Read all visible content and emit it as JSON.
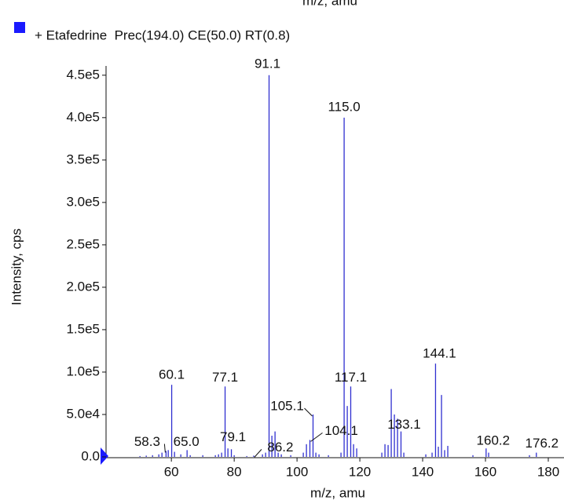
{
  "chart_data": {
    "type": "stick",
    "header_fragment": "m/z, amu",
    "x_label": "m/z, amu",
    "y_label": "Intensity, cps",
    "xlim": [
      39.2,
      185
    ],
    "ylim": [
      0,
      460000
    ],
    "xticks": [
      60,
      80,
      100,
      120,
      140,
      160,
      180
    ],
    "yticks": [
      {
        "value": 0,
        "label": "0.0"
      },
      {
        "value": 50000,
        "label": "5.0e4"
      },
      {
        "value": 100000,
        "label": "1.0e5"
      },
      {
        "value": 150000,
        "label": "1.5e5"
      },
      {
        "value": 200000,
        "label": "2.0e5"
      },
      {
        "value": 250000,
        "label": "2.5e5"
      },
      {
        "value": 300000,
        "label": "3.0e5"
      },
      {
        "value": 350000,
        "label": "3.5e5"
      },
      {
        "value": 400000,
        "label": "4.0e5"
      },
      {
        "value": 450000,
        "label": "4.5e5"
      }
    ],
    "series": [
      {
        "name": "+ Etafedrine  Prec(194.0) CE(50.0) RT(0.8)",
        "color": "#2f2fd0",
        "legend_color": "#1a1aff",
        "x": [
          50,
          52,
          54,
          56,
          57,
          58.3,
          59,
          60.1,
          61,
          63,
          65.0,
          66,
          70,
          74,
          75,
          76,
          77.1,
          78,
          79.1,
          80,
          84,
          86.2,
          89,
          90,
          91.1,
          92,
          93,
          94,
          95,
          98,
          102,
          103,
          104.1,
          105.1,
          106,
          107,
          110,
          114,
          115.0,
          116,
          117.1,
          118,
          119,
          127,
          128,
          129,
          130,
          131,
          132,
          133.1,
          134,
          141,
          143,
          144.1,
          145,
          146,
          147,
          148,
          156,
          160.2,
          161,
          174,
          176.2
        ],
        "values": [
          1000,
          1500,
          2000,
          3000,
          5000,
          7000,
          8000,
          85000,
          6000,
          3000,
          8000,
          2000,
          2000,
          2000,
          3000,
          5000,
          83000,
          10000,
          9000,
          2000,
          1000,
          1500,
          3000,
          5000,
          450000,
          25000,
          30000,
          5000,
          3000,
          2000,
          5000,
          15000,
          20000,
          50000,
          5000,
          3000,
          2000,
          5000,
          400000,
          60000,
          83000,
          15000,
          10000,
          5000,
          15000,
          14000,
          80000,
          50000,
          45000,
          30000,
          5000,
          3000,
          5000,
          110000,
          12000,
          73000,
          8000,
          13000,
          2000,
          10000,
          5000,
          2000,
          5000
        ]
      }
    ],
    "annotations": [
      {
        "x": 58.3,
        "text": "58.3"
      },
      {
        "x": 60.1,
        "text": "60.1"
      },
      {
        "x": 65.0,
        "text": "65.0"
      },
      {
        "x": 77.1,
        "text": "77.1"
      },
      {
        "x": 79.1,
        "text": "79.1"
      },
      {
        "x": 86.2,
        "text": "86.2"
      },
      {
        "x": 91.1,
        "text": "91.1"
      },
      {
        "x": 104.1,
        "text": "104.1"
      },
      {
        "x": 105.1,
        "text": "105.1"
      },
      {
        "x": 115.0,
        "text": "115.0"
      },
      {
        "x": 117.1,
        "text": "117.1"
      },
      {
        "x": 133.1,
        "text": "133.1"
      },
      {
        "x": 144.1,
        "text": "144.1"
      },
      {
        "x": 160.2,
        "text": "160.2"
      },
      {
        "x": 176.2,
        "text": "176.2"
      }
    ]
  }
}
